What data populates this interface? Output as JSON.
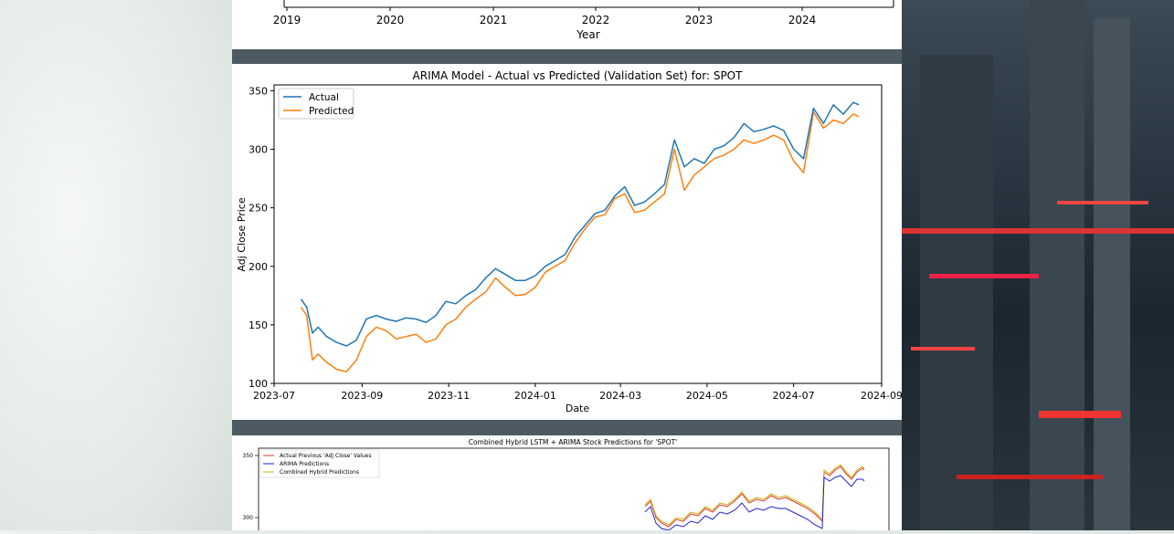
{
  "top_chart": {
    "xlabel": "Year",
    "tick_labels": [
      "2019",
      "2020",
      "2021",
      "2022",
      "2023",
      "2024"
    ]
  },
  "chart_data": [
    {
      "type": "line",
      "title": "ARIMA Model - Actual vs Predicted (Validation Set) for: SPOT",
      "xlabel": "Date",
      "ylabel": "Adj Close Price",
      "x_ticks": [
        "2023-07",
        "2023-09",
        "2023-11",
        "2024-01",
        "2024-03",
        "2024-05",
        "2024-07",
        "2024-09"
      ],
      "y_ticks": [
        100,
        150,
        200,
        250,
        300,
        350
      ],
      "xlim": [
        "2023-07-01",
        "2024-09-01"
      ],
      "ylim": [
        100,
        355
      ],
      "legend_position": "top-left",
      "grid": false,
      "x": [
        "2023-07-20",
        "2023-07-24",
        "2023-07-28",
        "2023-08-01",
        "2023-08-07",
        "2023-08-14",
        "2023-08-21",
        "2023-08-28",
        "2023-09-04",
        "2023-09-11",
        "2023-09-18",
        "2023-09-25",
        "2023-10-02",
        "2023-10-09",
        "2023-10-16",
        "2023-10-23",
        "2023-10-30",
        "2023-11-06",
        "2023-11-13",
        "2023-11-20",
        "2023-11-27",
        "2023-12-04",
        "2023-12-11",
        "2023-12-18",
        "2023-12-25",
        "2024-01-01",
        "2024-01-08",
        "2024-01-15",
        "2024-01-22",
        "2024-01-29",
        "2024-02-05",
        "2024-02-12",
        "2024-02-19",
        "2024-02-26",
        "2024-03-04",
        "2024-03-11",
        "2024-03-18",
        "2024-03-25",
        "2024-04-01",
        "2024-04-08",
        "2024-04-15",
        "2024-04-22",
        "2024-04-29",
        "2024-05-06",
        "2024-05-13",
        "2024-05-20",
        "2024-05-27",
        "2024-06-03",
        "2024-06-10",
        "2024-06-17",
        "2024-06-24",
        "2024-07-01",
        "2024-07-08",
        "2024-07-15",
        "2024-07-22",
        "2024-07-29",
        "2024-08-05",
        "2024-08-12",
        "2024-08-16"
      ],
      "series": [
        {
          "name": "Actual",
          "color": "#1f77b4",
          "values": [
            172,
            165,
            143,
            148,
            140,
            135,
            132,
            137,
            155,
            158,
            155,
            153,
            156,
            155,
            152,
            158,
            170,
            168,
            175,
            180,
            190,
            198,
            193,
            188,
            188,
            192,
            200,
            205,
            210,
            225,
            235,
            245,
            248,
            260,
            268,
            252,
            255,
            262,
            270,
            308,
            285,
            292,
            288,
            300,
            303,
            310,
            322,
            315,
            317,
            320,
            316,
            300,
            292,
            335,
            322,
            338,
            330,
            340,
            338
          ]
        },
        {
          "name": "Predicted",
          "color": "#ff7f0e",
          "values": [
            165,
            158,
            120,
            125,
            118,
            112,
            110,
            120,
            140,
            148,
            145,
            138,
            140,
            142,
            135,
            138,
            150,
            155,
            165,
            172,
            178,
            190,
            182,
            175,
            176,
            182,
            195,
            200,
            205,
            220,
            232,
            242,
            244,
            258,
            262,
            246,
            248,
            255,
            262,
            300,
            265,
            278,
            285,
            292,
            295,
            300,
            308,
            305,
            308,
            312,
            308,
            290,
            280,
            332,
            318,
            325,
            322,
            330,
            328
          ]
        }
      ]
    },
    {
      "type": "line",
      "title": "Combined Hybrid LSTM + ARIMA Stock Predictions for 'SPOT'",
      "y_ticks": [
        300,
        350
      ],
      "legend_position": "top-left",
      "series": [
        {
          "name": "Actual Previous 'Adj Close' Values",
          "color": "#e03030"
        },
        {
          "name": "ARIMA Predictions",
          "color": "#2222cc"
        },
        {
          "name": "Combined Hybrid Predictions",
          "color": "#c8b400"
        }
      ]
    }
  ]
}
